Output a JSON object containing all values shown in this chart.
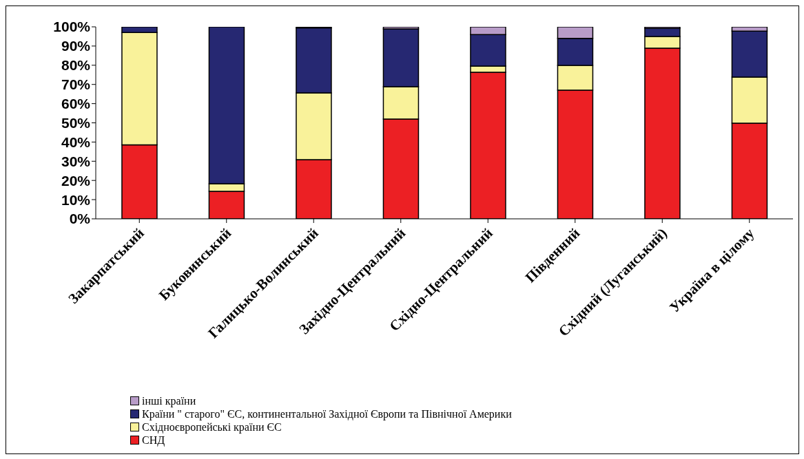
{
  "chart_data": {
    "type": "bar",
    "stacked": true,
    "categories": [
      "Закарпатський",
      "Буковинський",
      "Галицько-Волинський",
      "Західно-Центральний",
      "Східно-Центральний",
      "Південний",
      "Східний (Луганський)",
      "Україна в цілому"
    ],
    "series": [
      {
        "name": "СНД",
        "color": "#ec2024",
        "values": [
          38.5,
          14.3,
          30.8,
          52,
          76.3,
          67,
          88.9,
          49.8
        ]
      },
      {
        "name": "Східноєвропейські країни ЄС",
        "color": "#f9f29a",
        "values": [
          58.5,
          4,
          34.8,
          16.8,
          3.3,
          12.9,
          6.1,
          24
        ]
      },
      {
        "name": "Країни \" старого\"  ЄС, континентальної Західної Європи та Північної Америки",
        "color": "#262872",
        "values": [
          3,
          81.7,
          33.9,
          30.1,
          16.4,
          14.1,
          4.3,
          24
        ]
      },
      {
        "name": "інші країни",
        "color": "#b89cc8",
        "values": [
          0,
          null,
          0.5,
          1.1,
          4,
          6,
          0.7,
          2.2
        ]
      }
    ],
    "ylim": [
      0,
      100
    ],
    "yticks": [
      {
        "value": 0,
        "label": "0%"
      },
      {
        "value": 10,
        "label": "10%"
      },
      {
        "value": 20,
        "label": "20%"
      },
      {
        "value": 30,
        "label": "30%"
      },
      {
        "value": 40,
        "label": "40%"
      },
      {
        "value": 50,
        "label": "50%"
      },
      {
        "value": 60,
        "label": "60%"
      },
      {
        "value": 70,
        "label": "70%"
      },
      {
        "value": 80,
        "label": "80%"
      },
      {
        "value": 90,
        "label": "90%"
      },
      {
        "value": 100,
        "label": "100%"
      }
    ],
    "legend": "bottom left"
  }
}
